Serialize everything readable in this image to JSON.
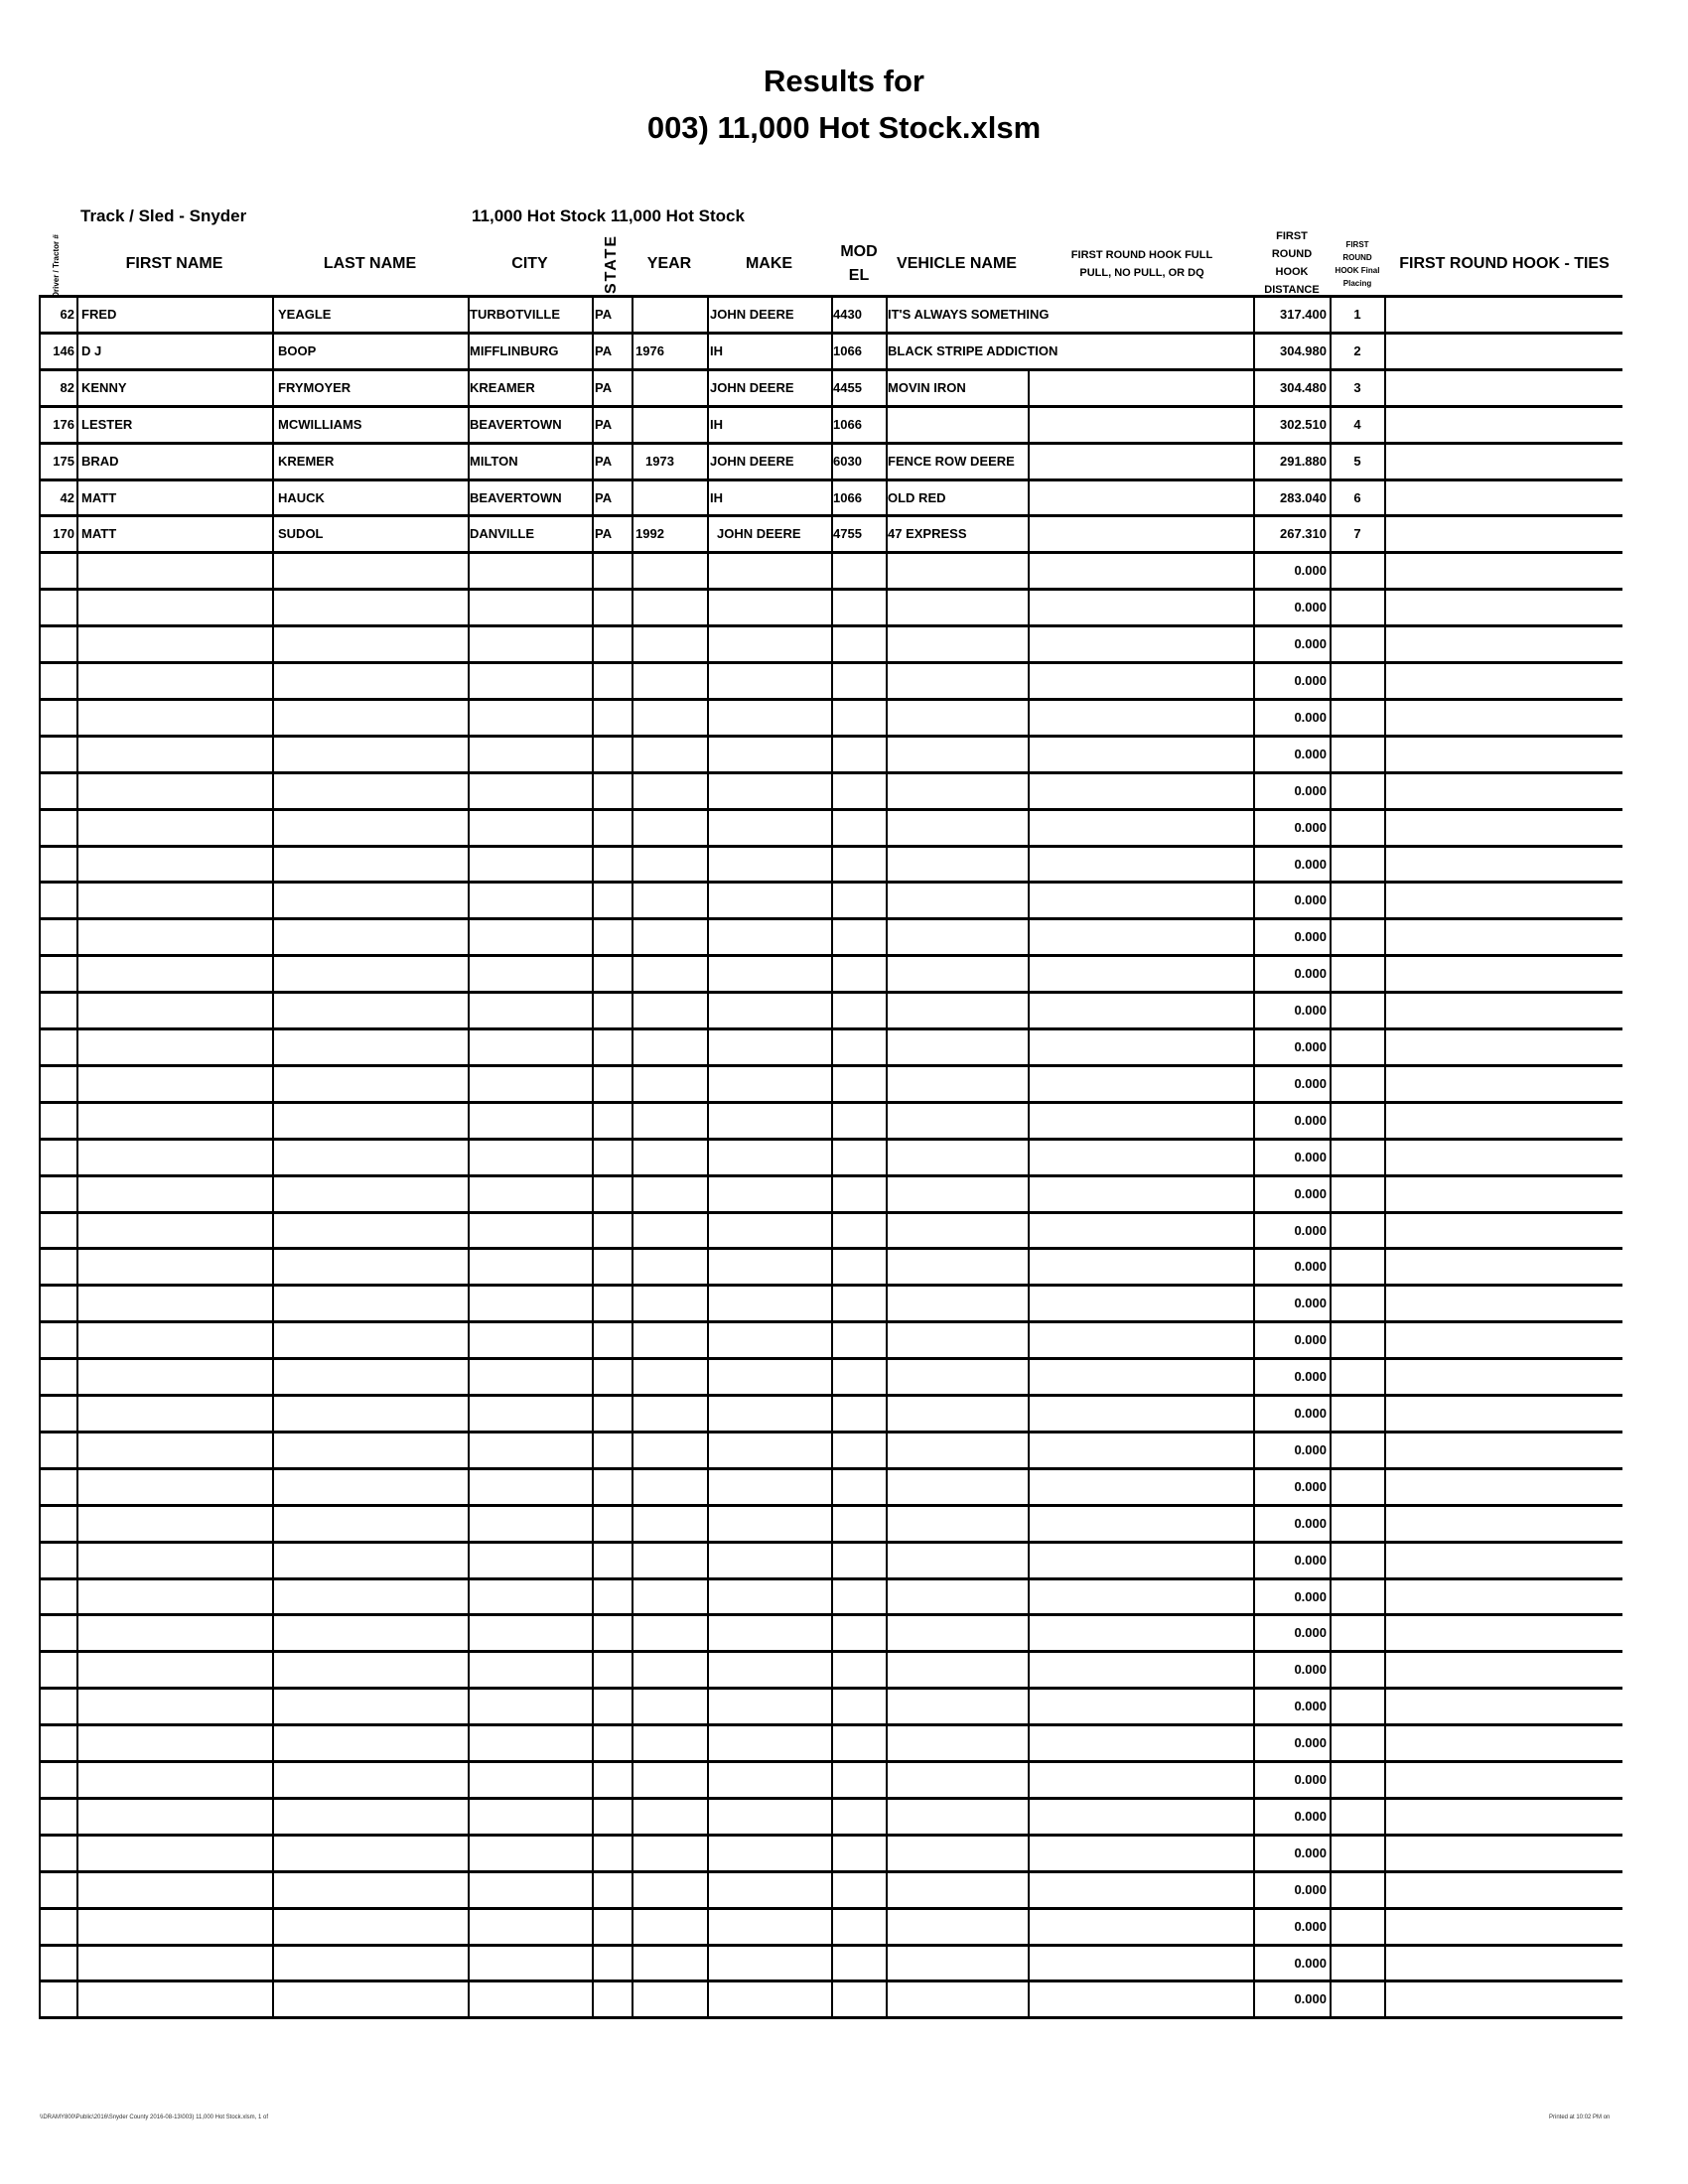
{
  "title": {
    "line1": "Results for",
    "line2": "003) 11,000 Hot Stock.xlsm"
  },
  "subheader": {
    "track": "Track / Sled - Snyder",
    "class": "11,000 Hot Stock  11,000 Hot Stock"
  },
  "columns": {
    "number": "Driver / Tractor #",
    "first_name": "FIRST NAME",
    "last_name": "LAST NAME",
    "city": "CITY",
    "state": "STATE",
    "year": "YEAR",
    "make": "MAKE",
    "model": "MOD EL",
    "vehicle": "VEHICLE NAME",
    "result": "FIRST ROUND HOOK FULL PULL, NO PULL, OR DQ",
    "distance": "FIRST ROUND HOOK DISTANCE",
    "placing": "FIRST ROUND HOOK Final Placing",
    "ties": "FIRST ROUND HOOK - TIES"
  },
  "rows": [
    {
      "num": "62",
      "first": "FRED",
      "last": "YEAGLE",
      "city": "TURBOTVILLE",
      "state": "PA",
      "year": "",
      "make": "JOHN DEERE",
      "model": "4430",
      "vehicle": "IT'S ALWAYS SOMETHING",
      "distance": "317.400",
      "place": "1"
    },
    {
      "num": "146",
      "first": "D J",
      "last": "BOOP",
      "city": "MIFFLINBURG",
      "state": "PA",
      "year": "1976",
      "make": "IH",
      "model": "1066",
      "vehicle": "BLACK STRIPE ADDICTION",
      "distance": "304.980",
      "place": "2"
    },
    {
      "num": "82",
      "first": "KENNY",
      "last": "FRYMOYER",
      "city": "KREAMER",
      "state": "PA",
      "year": "",
      "make": "JOHN DEERE",
      "model": "4455",
      "vehicle": "MOVIN IRON",
      "distance": "304.480",
      "place": "3"
    },
    {
      "num": "176",
      "first": "LESTER",
      "last": "MCWILLIAMS",
      "city": "BEAVERTOWN",
      "state": "PA",
      "year": "",
      "make": "IH",
      "model": "1066",
      "vehicle": "",
      "distance": "302.510",
      "place": "4"
    },
    {
      "num": "175",
      "first": "BRAD",
      "last": "KREMER",
      "city": "MILTON",
      "state": "PA",
      "year": "1973",
      "make": "JOHN DEERE",
      "model": "6030",
      "vehicle": "FENCE ROW DEERE",
      "distance": "291.880",
      "place": "5"
    },
    {
      "num": "42",
      "first": "MATT",
      "last": "HAUCK",
      "city": "BEAVERTOWN",
      "state": "PA",
      "year": "",
      "make": "IH",
      "model": "1066",
      "vehicle": "OLD RED",
      "distance": "283.040",
      "place": "6"
    },
    {
      "num": "170",
      "first": "MATT",
      "last": "SUDOL",
      "city": "DANVILLE",
      "state": "PA",
      "year": "1992",
      "make": "JOHN DEERE",
      "model": "4755",
      "vehicle": "47 EXPRESS",
      "distance": "267.310",
      "place": "7"
    }
  ],
  "blank_distances": [
    "0.000",
    "0.000",
    "0.000",
    "0.000",
    "0.000",
    "0.000",
    "0.000",
    "0.000",
    "0.000",
    "0.000",
    "0.000",
    "0.000",
    "0.000",
    "0.000",
    "0.000",
    "0.000",
    "0.000",
    "0.000",
    "0.000",
    "0.000",
    "0.000",
    "0.000",
    "0.000",
    "0.000",
    "0.000",
    "0.000",
    "0.000",
    "0.000",
    "0.000",
    "0.000",
    "0.000",
    "0.000",
    "0.000",
    "0.000",
    "0.000",
    "0.000",
    "0.000",
    "0.000",
    "0.000",
    "0.000"
  ],
  "footer": {
    "path": "\\\\DRAMY800\\Public\\2016\\Snyder County 2016-08-13\\003) 11,000 Hot Stock.xlsm, 1 of",
    "printed": "Printed at 10:02 PM on"
  }
}
